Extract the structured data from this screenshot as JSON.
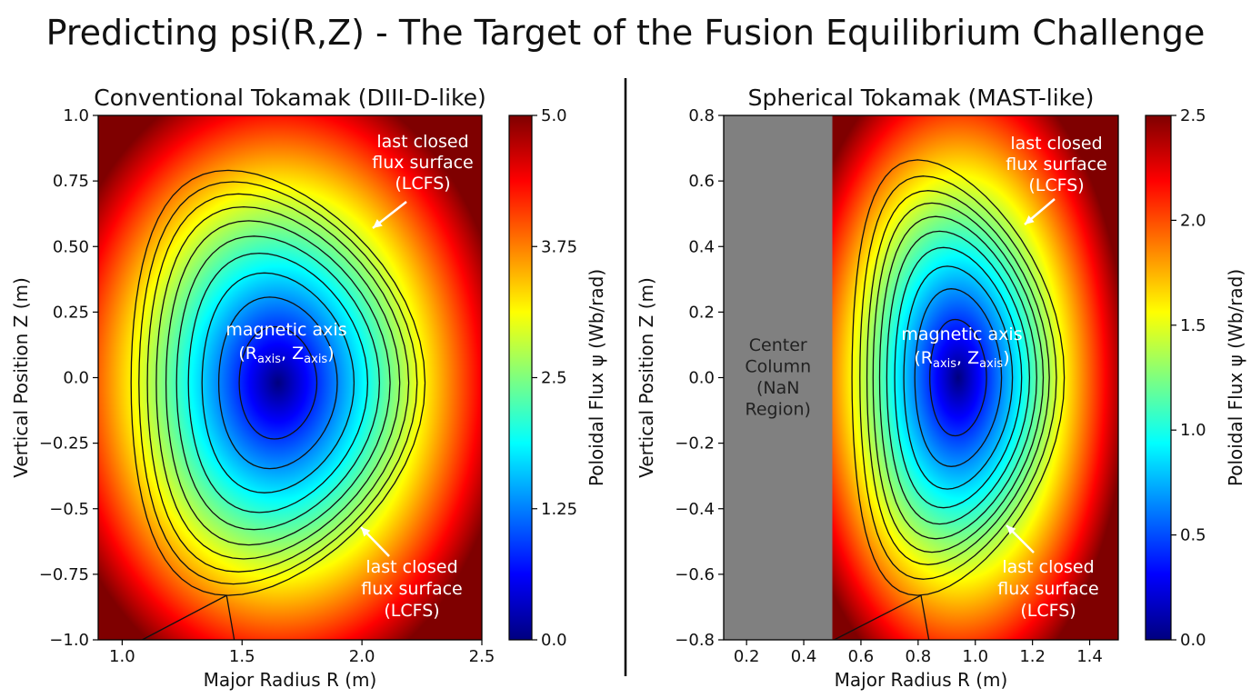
{
  "page": {
    "title": "Predicting psi(R,Z) - The Target of the Fusion Equilibrium Challenge"
  },
  "colormap": [
    "#00007f",
    "#0000ff",
    "#007fff",
    "#00ffff",
    "#7fff7f",
    "#ffff00",
    "#ff7f00",
    "#ff0000",
    "#7f0000"
  ],
  "chart_data": [
    {
      "type": "heatmap",
      "title": "Conventional Tokamak (DIII-D-like)",
      "xlabel": "Major Radius R (m)",
      "ylabel": "Vertical Position Z (m)",
      "xlim": [
        0.9,
        2.5
      ],
      "ylim": [
        -1.0,
        1.0
      ],
      "xticks": [
        1.0,
        1.5,
        2.0,
        2.5
      ],
      "xtick_labels": [
        "1.0",
        "1.5",
        "2.0",
        "2.5"
      ],
      "yticks": [
        -1.0,
        -0.75,
        -0.5,
        -0.25,
        0.0,
        0.25,
        0.5,
        0.75,
        1.0
      ],
      "ytick_labels": [
        "−1.0",
        "−0.75",
        "−0.5",
        "−0.25",
        "0.0",
        "0.25",
        "0.50",
        "0.75",
        "1.0"
      ],
      "colorbar": {
        "label": "Poloidal Flux ψ (Wb/rad)",
        "range": [
          0.0,
          5.0
        ],
        "ticks": [
          0.0,
          1.25,
          2.5,
          3.75,
          5.0
        ],
        "tick_labels": [
          "0.0",
          "1.25",
          "2.5",
          "3.75",
          "5.0"
        ]
      },
      "field": {
        "axis_R": 1.65,
        "axis_Z": -0.02,
        "half_width": 0.62,
        "half_height": 0.82,
        "triangularity": 0.35,
        "psi_axis": 0.0,
        "psi_scale": 4.4
      },
      "contour_levels": [
        0.3,
        0.7,
        1.15,
        1.6,
        2.05,
        2.5,
        2.95,
        3.4,
        3.85,
        4.3
      ],
      "lcfs_level": 4.3,
      "annotations": {
        "axis": {
          "text": "magnetic axis",
          "coords": "(R",
          "sub1": "axis",
          "mid": ", Z",
          "sub2": "axis",
          "end": ")"
        },
        "lcfs_top": [
          "last closed",
          "flux surface",
          "(LCFS)"
        ],
        "lcfs_bottom": [
          "last closed",
          "flux surface",
          "(LCFS)"
        ]
      }
    },
    {
      "type": "heatmap",
      "title": "Spherical Tokamak (MAST-like)",
      "xlabel": "Major Radius R (m)",
      "ylabel": "Vertical Position Z (m)",
      "xlim": [
        0.12,
        1.5
      ],
      "ylim": [
        -0.8,
        0.8
      ],
      "xticks": [
        0.2,
        0.4,
        0.6,
        0.8,
        1.0,
        1.2,
        1.4
      ],
      "xtick_labels": [
        "0.2",
        "0.4",
        "0.6",
        "0.8",
        "1.0",
        "1.2",
        "1.4"
      ],
      "yticks": [
        -0.8,
        -0.6,
        -0.4,
        -0.2,
        0.0,
        0.2,
        0.4,
        0.6,
        0.8
      ],
      "ytick_labels": [
        "−0.8",
        "−0.6",
        "−0.4",
        "−0.2",
        "0.0",
        "0.2",
        "0.4",
        "0.6",
        "0.8"
      ],
      "colorbar": {
        "label": "Poloidal Flux ψ (Wb/rad)",
        "range": [
          0.0,
          2.5
        ],
        "ticks": [
          0.0,
          0.5,
          1.0,
          1.5,
          2.0,
          2.5
        ],
        "tick_labels": [
          "0.0",
          "0.5",
          "1.0",
          "1.5",
          "2.0",
          "2.5"
        ]
      },
      "nan_region": {
        "R_max": 0.5,
        "color": "#808080",
        "label": [
          "Center",
          "Column",
          "(NaN",
          "Region)"
        ]
      },
      "field": {
        "axis_R": 0.94,
        "axis_Z": 0.0,
        "half_width": 0.38,
        "half_height": 0.68,
        "triangularity": 0.4,
        "psi_axis": 0.0,
        "psi_scale": 2.2
      },
      "contour_levels": [
        0.15,
        0.35,
        0.55,
        0.75,
        0.95,
        1.15,
        1.35,
        1.55,
        1.8,
        2.1
      ],
      "lcfs_level": 2.1,
      "annotations": {
        "axis": {
          "text": "magnetic axis",
          "coords": "(R",
          "sub1": "axis",
          "mid": ", Z",
          "sub2": "axis",
          "end": ")"
        },
        "lcfs_top": [
          "last closed",
          "flux surface",
          "(LCFS)"
        ],
        "lcfs_bottom": [
          "last closed",
          "flux surface",
          "(LCFS)"
        ]
      }
    }
  ]
}
